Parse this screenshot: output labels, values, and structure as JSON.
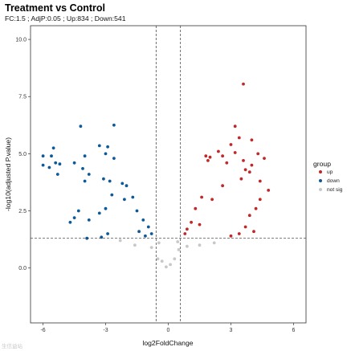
{
  "chart_data": {
    "type": "scatter",
    "title": "Treatment vs Control",
    "subtitle": "FC:1.5 ; AdjP:0.05 ; Up:834 ; Down:541",
    "xlabel": "log2FoldChange",
    "ylabel": "-log10(adjusted P.value)",
    "xlim": [
      -6.6,
      6.6
    ],
    "ylim": [
      -2.4,
      10.6
    ],
    "x_ticks": [
      -6,
      -3,
      0,
      3,
      6
    ],
    "x_tick_labels": [
      "-6",
      "-3",
      "0",
      "3",
      "6"
    ],
    "y_ticks": [
      0,
      2.5,
      5,
      7.5,
      10
    ],
    "y_tick_labels": [
      "0.0",
      "2.5",
      "5.0",
      "7.5",
      "10.0"
    ],
    "thresholds": {
      "log2fc": [
        -0.585,
        0.585
      ],
      "neg_log10_padj": 1.301
    },
    "grid": false,
    "legend": {
      "title": "group",
      "placement": "right",
      "entries": [
        {
          "label": "up",
          "color": "#c0282a"
        },
        {
          "label": "down",
          "color": "#0c5a99"
        },
        {
          "label": "not sig",
          "color": "#c8c8c8"
        }
      ]
    },
    "series": [
      {
        "name": "up",
        "color": "#c0282a",
        "points": [
          [
            3.6,
            8.05
          ],
          [
            3.2,
            6.2
          ],
          [
            3.4,
            5.7
          ],
          [
            4.0,
            5.6
          ],
          [
            3.0,
            5.4
          ],
          [
            4.3,
            5.0
          ],
          [
            4.6,
            4.8
          ],
          [
            3.2,
            5.05
          ],
          [
            2.6,
            4.9
          ],
          [
            2.4,
            5.1
          ],
          [
            2.0,
            4.85
          ],
          [
            1.8,
            4.9
          ],
          [
            1.9,
            4.7
          ],
          [
            2.8,
            4.6
          ],
          [
            3.6,
            4.7
          ],
          [
            4.0,
            4.5
          ],
          [
            3.7,
            4.3
          ],
          [
            3.9,
            4.2
          ],
          [
            4.4,
            3.8
          ],
          [
            3.5,
            3.9
          ],
          [
            4.8,
            3.4
          ],
          [
            4.4,
            3.0
          ],
          [
            4.2,
            2.6
          ],
          [
            3.9,
            2.3
          ],
          [
            3.7,
            1.8
          ],
          [
            4.1,
            1.6
          ],
          [
            3.0,
            1.4
          ],
          [
            3.4,
            1.5
          ],
          [
            2.6,
            3.6
          ],
          [
            2.1,
            3.0
          ],
          [
            1.6,
            3.1
          ],
          [
            1.3,
            2.6
          ],
          [
            1.1,
            2.0
          ],
          [
            0.9,
            1.7
          ],
          [
            0.8,
            1.5
          ],
          [
            1.5,
            1.9
          ]
        ]
      },
      {
        "name": "down",
        "color": "#0c5a99",
        "points": [
          [
            -4.2,
            6.2
          ],
          [
            -2.6,
            6.25
          ],
          [
            -2.9,
            5.3
          ],
          [
            -3.3,
            5.35
          ],
          [
            -3.0,
            5.0
          ],
          [
            -2.6,
            4.8
          ],
          [
            -4.0,
            4.9
          ],
          [
            -4.5,
            4.6
          ],
          [
            -5.5,
            5.25
          ],
          [
            -5.6,
            4.9
          ],
          [
            -6.0,
            4.9
          ],
          [
            -5.4,
            4.6
          ],
          [
            -5.2,
            4.55
          ],
          [
            -5.7,
            4.4
          ],
          [
            -5.3,
            4.1
          ],
          [
            -6.0,
            4.5
          ],
          [
            -4.1,
            4.35
          ],
          [
            -4.0,
            3.8
          ],
          [
            -3.8,
            4.1
          ],
          [
            -3.1,
            3.9
          ],
          [
            -2.8,
            3.8
          ],
          [
            -2.2,
            3.7
          ],
          [
            -2.0,
            3.6
          ],
          [
            -2.7,
            3.2
          ],
          [
            -3.0,
            2.6
          ],
          [
            -3.3,
            2.4
          ],
          [
            -4.5,
            2.2
          ],
          [
            -4.3,
            2.5
          ],
          [
            -3.8,
            2.1
          ],
          [
            -4.7,
            2.0
          ],
          [
            -3.9,
            1.3
          ],
          [
            -3.2,
            1.35
          ],
          [
            -2.9,
            1.5
          ],
          [
            -2.1,
            3.0
          ],
          [
            -1.7,
            3.1
          ],
          [
            -1.5,
            2.5
          ],
          [
            -1.2,
            2.1
          ],
          [
            -0.95,
            1.8
          ],
          [
            -0.8,
            1.5
          ],
          [
            -1.1,
            1.4
          ],
          [
            -1.4,
            1.6
          ]
        ]
      },
      {
        "name": "not sig",
        "color": "#c8c8c8",
        "points": [
          [
            -0.5,
            0.4
          ],
          [
            -0.3,
            0.3
          ],
          [
            -0.1,
            0.05
          ],
          [
            0.1,
            0.15
          ],
          [
            0.3,
            0.4
          ],
          [
            0.5,
            0.8
          ],
          [
            -0.45,
            1.1
          ],
          [
            0.45,
            1.15
          ],
          [
            1.5,
            1.0
          ],
          [
            2.2,
            1.1
          ],
          [
            -1.6,
            1.0
          ],
          [
            -2.3,
            1.2
          ],
          [
            -0.8,
            0.9
          ],
          [
            0.9,
            0.95
          ]
        ]
      }
    ],
    "counts": {
      "up": 834,
      "down": 541
    }
  },
  "watermark": "生信益站"
}
